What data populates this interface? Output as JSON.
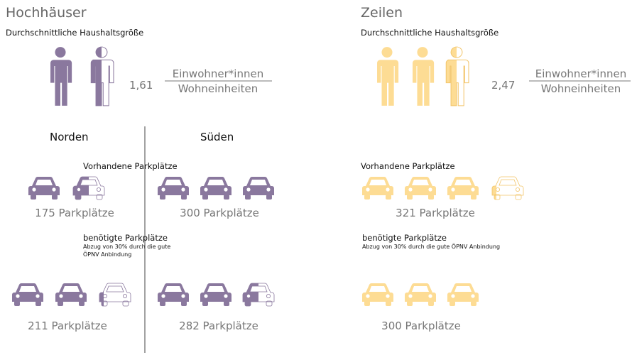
{
  "left": {
    "title": "Hochhäuser",
    "subtitle": "Durchschnittliche Haushaltsgröße",
    "household": {
      "value": "1,61",
      "numerator": "Einwohner*innen",
      "denominator": "Wohneinheiten"
    },
    "regions": [
      "Norden",
      "Süden"
    ],
    "existing": {
      "label": "Vorhandene Parkplätze",
      "values": [
        "175 Parkplätze",
        "300 Parkplätze"
      ]
    },
    "needed": {
      "label": "benötigte Parkplätze",
      "note": "Abzug von 30% durch die gute ÖPNV Anbindung",
      "values": [
        "211 Parkplätze",
        "282 Parkplätze"
      ]
    }
  },
  "right": {
    "title": "Zeilen",
    "subtitle": "Durchschnittliche Haushaltsgröße",
    "household": {
      "value": "2,47",
      "numerator": "Einwohner*innen",
      "denominator": "Wohneinheiten"
    },
    "existing": {
      "label": "Vorhandene Parkplätze",
      "values": [
        "321 Parkplätze"
      ]
    },
    "needed": {
      "label": "benötigte Parkplätze",
      "note": "Abzug von 30% durch die gute ÖPNV Anbindung",
      "values": [
        "300 Parkplätze"
      ]
    }
  }
}
